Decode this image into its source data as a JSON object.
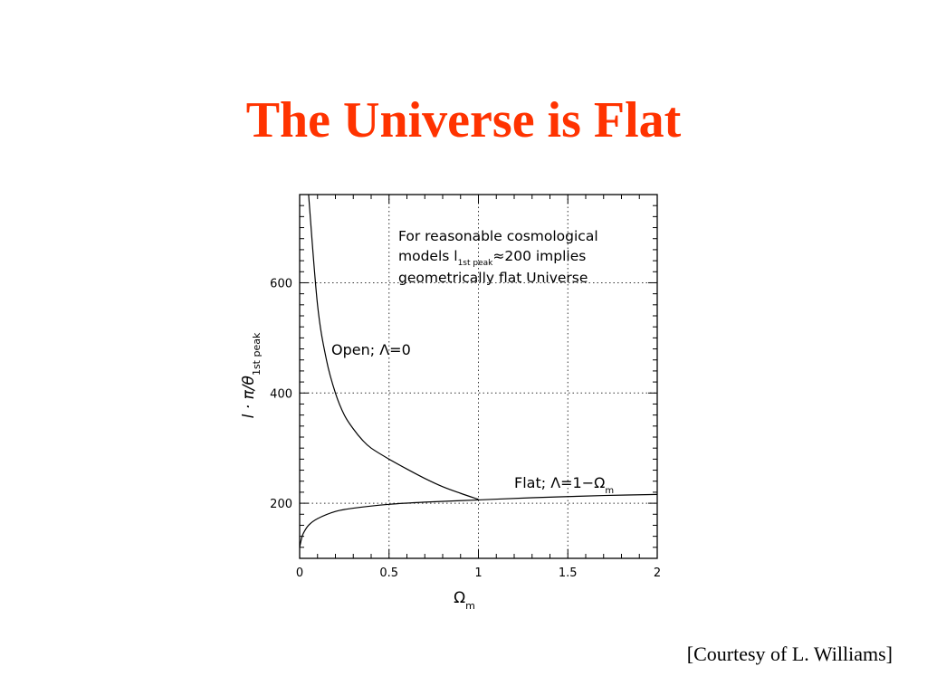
{
  "slide": {
    "title": "The Universe is Flat",
    "courtesy": "[Courtesy of L. Williams]",
    "title_color": "#ff3300"
  },
  "chart_data": {
    "type": "line",
    "title": "",
    "xlabel": "Ω",
    "xlabel_sub": "m",
    "ylabel_prefix": "l · π/θ",
    "ylabel_sub": "1st peak",
    "xlim": [
      0,
      2
    ],
    "ylim": [
      100,
      760
    ],
    "xticks": [
      0,
      0.5,
      1,
      1.5,
      2
    ],
    "xtick_labels": [
      "0",
      "0.5",
      "1",
      "1.5",
      "2"
    ],
    "yticks": [
      200,
      400,
      600
    ],
    "ytick_labels": [
      "200",
      "400",
      "600"
    ],
    "grid": true,
    "grid_style": "dotted",
    "series": [
      {
        "name": "Open; Λ=0",
        "x": [
          0.05,
          0.1,
          0.15,
          0.2,
          0.25,
          0.3,
          0.35,
          0.4,
          0.5,
          0.6,
          0.7,
          0.8,
          0.9,
          1.0
        ],
        "y": [
          760,
          560,
          460,
          400,
          360,
          335,
          315,
          300,
          280,
          262,
          245,
          230,
          218,
          207
        ]
      },
      {
        "name": "Flat; Λ=1−Ωm",
        "x": [
          0.0,
          0.01,
          0.02,
          0.05,
          0.1,
          0.2,
          0.3,
          0.5,
          0.7,
          1.0,
          1.3,
          1.5,
          1.7,
          2.0
        ],
        "y": [
          120,
          135,
          145,
          160,
          172,
          185,
          191,
          198,
          202,
          206,
          210,
          212,
          214,
          216
        ]
      }
    ],
    "annotations": {
      "note_lines": [
        "For reasonable cosmological",
        "models l",
        "≈200 implies",
        "geometrically flat Universe"
      ],
      "note_sub": "1st peak",
      "open_label": "Open; Λ=0",
      "flat_label_prefix": "Flat; Λ=1−Ω",
      "flat_label_sub": "m"
    }
  }
}
